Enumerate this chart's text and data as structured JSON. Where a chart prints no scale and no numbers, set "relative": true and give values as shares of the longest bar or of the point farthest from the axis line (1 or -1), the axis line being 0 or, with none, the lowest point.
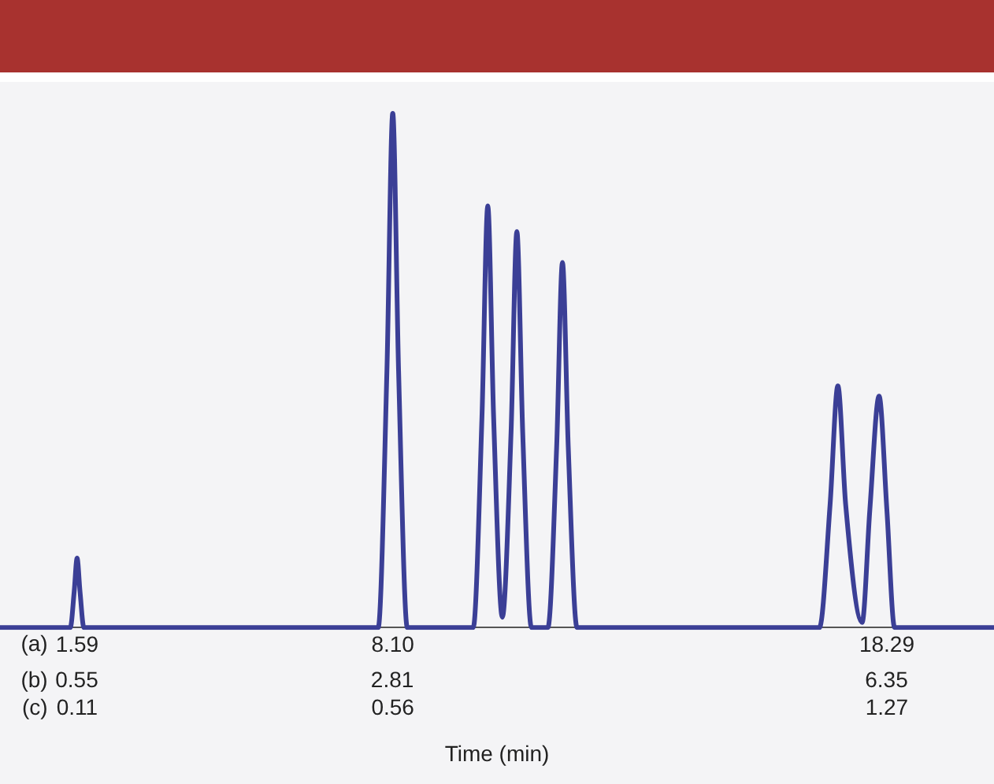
{
  "chart_data": {
    "type": "line",
    "relative": true,
    "xlabel": "Time (min)",
    "color": "#3b3f96",
    "grid": false,
    "legend": false,
    "marker": "none",
    "line_style": "solid",
    "x": [
      0,
      1.45,
      1.53,
      1.59,
      1.65,
      1.73,
      7.8,
      7.98,
      8.1,
      8.22,
      8.4,
      9.76,
      9.94,
      10.06,
      10.18,
      10.36,
      10.54,
      10.66,
      10.78,
      10.96,
      11.3,
      11.48,
      11.6,
      11.72,
      11.9,
      16.9,
      17.12,
      17.28,
      17.44,
      17.78,
      17.94,
      18.13,
      18.29,
      18.45,
      18.7,
      20.5
    ],
    "values": [
      0,
      0,
      0.07,
      0.135,
      0.07,
      0,
      0,
      0.5,
      1,
      0.5,
      0,
      0,
      0.41,
      0.82,
      0.41,
      0.02,
      0.38,
      0.77,
      0.38,
      0,
      0,
      0.35,
      0.71,
      0.35,
      0,
      0,
      0.24,
      0.47,
      0.24,
      0.01,
      0.23,
      0.45,
      0.23,
      0,
      0,
      0
    ],
    "xlim": [
      0,
      20.5
    ],
    "xticks": [
      1.59,
      {
        "value": 8.1,
        "label": "8.10"
      },
      18.29
    ],
    "x2lim": [
      0,
      7.12
    ],
    "x2ticks": [
      0.55,
      2.81,
      6.35
    ],
    "annotations": [
      "(a)",
      "(b)",
      "(c)",
      "0.11",
      "0.56",
      "1.27"
    ]
  }
}
